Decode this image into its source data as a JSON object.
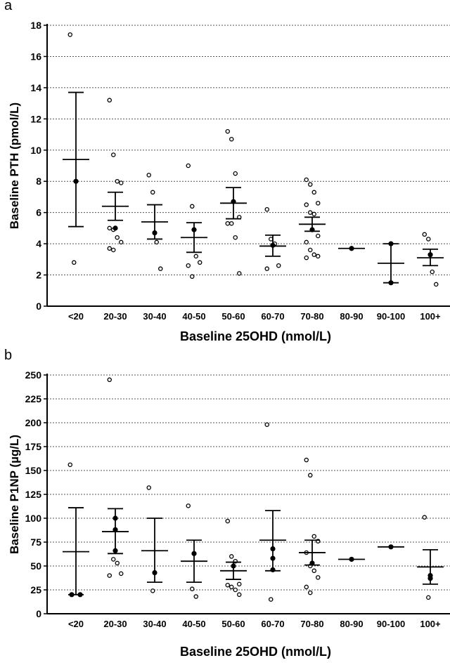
{
  "chart_data": [
    {
      "type": "dotplot",
      "panel_label": "a",
      "y_label": "Baseline PTH (pmol/L)",
      "x_label": "Baseline 25OHD (nmol/L)",
      "categories": [
        "<20",
        "20-30",
        "30-40",
        "40-50",
        "50-60",
        "60-70",
        "70-80",
        "80-90",
        "90-100",
        "100+"
      ],
      "groups": [
        {
          "points": [
            17.4,
            2.8
          ],
          "filled": [
            8.0
          ],
          "mean": 9.4,
          "upper": 13.7,
          "lower": 5.1
        },
        {
          "points": [
            13.2,
            9.7,
            8.0,
            7.9,
            5.0,
            4.9,
            4.4,
            4.1,
            3.7,
            3.6
          ],
          "filled": [
            5.0
          ],
          "mean": 6.4,
          "upper": 7.3,
          "lower": 5.5
        },
        {
          "points": [
            8.4,
            7.3,
            4.1,
            2.4
          ],
          "filled": [
            4.7
          ],
          "mean": 5.4,
          "upper": 6.5,
          "lower": 4.3
        },
        {
          "points": [
            9.0,
            6.4,
            3.2,
            2.8,
            2.6,
            1.9
          ],
          "filled": [
            4.9
          ],
          "mean": 4.4,
          "upper": 5.35,
          "lower": 3.45
        },
        {
          "points": [
            11.2,
            10.7,
            8.5,
            5.7,
            5.3,
            5.3,
            4.4,
            2.1
          ],
          "filled": [
            6.7
          ],
          "mean": 6.6,
          "upper": 7.6,
          "lower": 5.6
        },
        {
          "points": [
            6.2,
            4.3,
            4.0,
            2.6,
            2.4
          ],
          "filled": [
            3.9
          ],
          "mean": 3.85,
          "upper": 4.55,
          "lower": 3.2
        },
        {
          "points": [
            8.1,
            7.8,
            7.3,
            6.6,
            6.5,
            6.0,
            5.9,
            4.5,
            4.1,
            3.6,
            3.3,
            3.2,
            3.1
          ],
          "filled": [
            4.9
          ],
          "mean": 5.25,
          "upper": 5.7,
          "lower": 4.8
        },
        {
          "points": [],
          "filled": [
            3.7
          ],
          "mean": 3.7,
          "upper": null,
          "lower": null
        },
        {
          "points": [],
          "filled": [
            4.0,
            1.5
          ],
          "mean": 2.75,
          "upper": 4.0,
          "lower": 1.5
        },
        {
          "points": [
            4.6,
            4.3,
            2.2,
            1.4
          ],
          "filled": [
            3.3
          ],
          "mean": 3.1,
          "upper": 3.65,
          "lower": 2.6
        }
      ],
      "ylim": [
        0,
        18
      ],
      "yticks": [
        0,
        2,
        4,
        6,
        8,
        10,
        12,
        14,
        16,
        18
      ],
      "grid": true
    },
    {
      "type": "dotplot",
      "panel_label": "b",
      "y_label": "Baseline P1NP (µg/L)",
      "x_label": "Baseline 25OHD (nmol/L)",
      "categories": [
        "<20",
        "20-30",
        "30-40",
        "40-50",
        "50-60",
        "60-70",
        "70-80",
        "80-90",
        "90-100",
        "100+"
      ],
      "groups": [
        {
          "points": [
            156
          ],
          "filled": [
            20,
            20
          ],
          "mean": 65,
          "upper": 111,
          "lower": 20
        },
        {
          "points": [
            245,
            57,
            53,
            42,
            40
          ],
          "filled": [
            100,
            88,
            66
          ],
          "mean": 86,
          "upper": 110,
          "lower": 63
        },
        {
          "points": [
            132,
            24
          ],
          "filled": [
            43
          ],
          "mean": 66,
          "upper": 100,
          "lower": 33
        },
        {
          "points": [
            113,
            26,
            18
          ],
          "filled": [
            63
          ],
          "mean": 55,
          "upper": 77,
          "lower": 33
        },
        {
          "points": [
            97,
            60,
            55,
            31,
            30,
            28,
            25,
            20
          ],
          "filled": [
            50
          ],
          "mean": 45,
          "upper": 54,
          "lower": 36
        },
        {
          "points": [
            198,
            15
          ],
          "filled": [
            68,
            58,
            46
          ],
          "mean": 77,
          "upper": 108,
          "lower": 45
        },
        {
          "points": [
            161,
            145,
            81,
            76,
            64,
            50,
            45,
            38,
            28,
            22
          ],
          "filled": [
            53
          ],
          "mean": 64,
          "upper": 77,
          "lower": 51
        },
        {
          "points": [],
          "filled": [
            57
          ],
          "mean": 57,
          "upper": null,
          "lower": null
        },
        {
          "points": [],
          "filled": [
            70
          ],
          "mean": 70,
          "upper": null,
          "lower": null
        },
        {
          "points": [
            101,
            17
          ],
          "filled": [
            40,
            37
          ],
          "mean": 49,
          "upper": 67,
          "lower": 31
        }
      ],
      "ylim": [
        0,
        250
      ],
      "yticks": [
        0,
        25,
        50,
        75,
        100,
        125,
        150,
        175,
        200,
        225,
        250
      ],
      "grid": true
    }
  ]
}
